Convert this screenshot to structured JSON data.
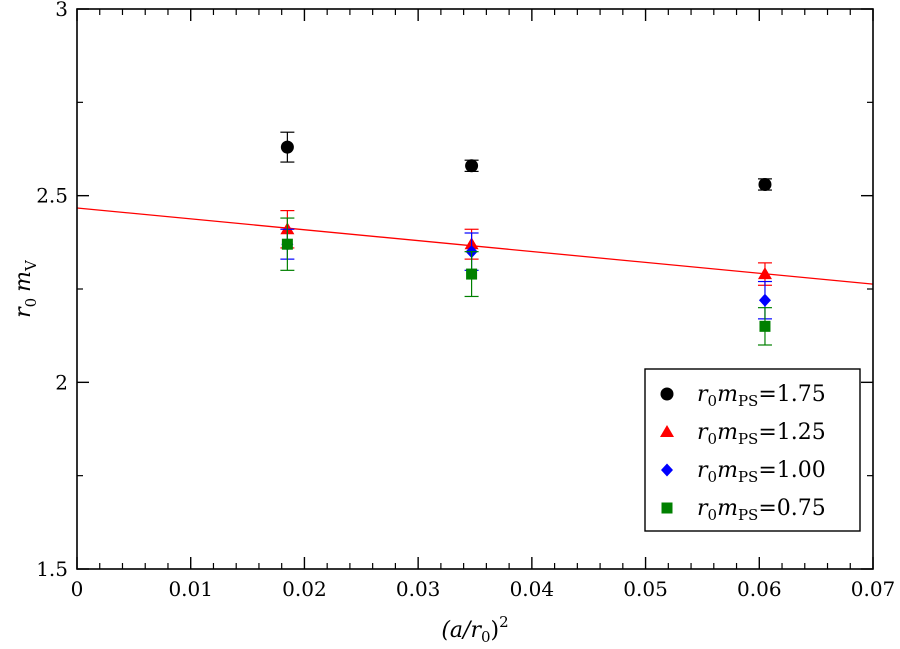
{
  "chart_data": {
    "type": "scatter",
    "title": "",
    "xlabel": "(a/r0)^2",
    "ylabel": "r0 mV",
    "xlim": [
      0,
      0.07
    ],
    "ylim": [
      1.5,
      3.0
    ],
    "x_ticks": [
      "0",
      "0.01",
      "0.02",
      "0.03",
      "0.04",
      "0.05",
      "0.06",
      "0.07"
    ],
    "y_ticks": [
      "1.5",
      "2",
      "2.5",
      "3"
    ],
    "x_tick_values": [
      0,
      0.01,
      0.02,
      0.03,
      0.04,
      0.05,
      0.06,
      0.07
    ],
    "y_tick_values": [
      1.5,
      2.0,
      2.5,
      3.0
    ],
    "grid": false,
    "legend_position": "bottom-right",
    "series": [
      {
        "name": "r0mPS=1.75",
        "value_label": "=1.75",
        "marker": "circle",
        "color": "#000000",
        "points": [
          {
            "x": 0.0185,
            "y": 2.63,
            "err": 0.04
          },
          {
            "x": 0.0347,
            "y": 2.58,
            "err": 0.015
          },
          {
            "x": 0.0605,
            "y": 2.53,
            "err": 0.015
          }
        ]
      },
      {
        "name": "r0mPS=1.25",
        "value_label": "=1.25",
        "marker": "triangle",
        "color": "#ff0000",
        "points": [
          {
            "x": 0.0185,
            "y": 2.41,
            "err": 0.05
          },
          {
            "x": 0.0347,
            "y": 2.37,
            "err": 0.04
          },
          {
            "x": 0.0605,
            "y": 2.29,
            "err": 0.03
          }
        ]
      },
      {
        "name": "r0mPS=1.00",
        "value_label": "=1.00",
        "marker": "diamond",
        "color": "#0000ff",
        "points": [
          {
            "x": 0.0185,
            "y": 2.37,
            "err": 0.04
          },
          {
            "x": 0.0347,
            "y": 2.35,
            "err": 0.05
          },
          {
            "x": 0.0605,
            "y": 2.22,
            "err": 0.05
          }
        ]
      },
      {
        "name": "r0mPS=0.75",
        "value_label": "=0.75",
        "marker": "square",
        "color": "#008000",
        "points": [
          {
            "x": 0.0185,
            "y": 2.37,
            "err": 0.07
          },
          {
            "x": 0.0347,
            "y": 2.29,
            "err": 0.06
          },
          {
            "x": 0.0605,
            "y": 2.15,
            "err": 0.05
          }
        ]
      }
    ],
    "fit_line": {
      "color": "#ff0000",
      "x": [
        0,
        0.07
      ],
      "y": [
        2.467,
        2.263
      ]
    }
  }
}
